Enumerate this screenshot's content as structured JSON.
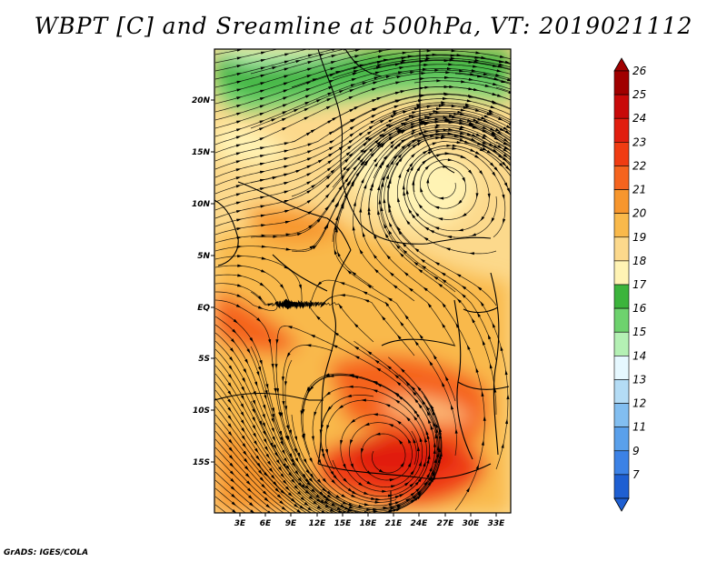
{
  "title": "WBPT [C] and Sreamline at 500hPa, VT: 2019021112",
  "credit": "GrADS: IGES/COLA",
  "map": {
    "lat_labels": [
      "20N",
      "15N",
      "10N",
      "5N",
      "EQ",
      "5S",
      "10S",
      "15S"
    ],
    "lon_labels": [
      "3E",
      "6E",
      "9E",
      "12E",
      "15E",
      "18E",
      "21E",
      "24E",
      "27E",
      "30E",
      "33E"
    ]
  },
  "colorbar": {
    "levels": [
      {
        "label": "26",
        "color": "#a00000"
      },
      {
        "label": "25",
        "color": "#c80a0a"
      },
      {
        "label": "24",
        "color": "#e11e0f"
      },
      {
        "label": "23",
        "color": "#f03c12"
      },
      {
        "label": "22",
        "color": "#f5641e"
      },
      {
        "label": "21",
        "color": "#f7962d"
      },
      {
        "label": "20",
        "color": "#f9b94b"
      },
      {
        "label": "19",
        "color": "#fcd98c"
      },
      {
        "label": "18",
        "color": "#fff3b4"
      },
      {
        "label": "17",
        "color": "#3cb43c"
      },
      {
        "label": "16",
        "color": "#6ed26e"
      },
      {
        "label": "15",
        "color": "#b4f0b4"
      },
      {
        "label": "14",
        "color": "#e6f8ff"
      },
      {
        "label": "13",
        "color": "#b4dcf5"
      },
      {
        "label": "12",
        "color": "#82bef0"
      },
      {
        "label": "11",
        "color": "#5aa0eb"
      },
      {
        "label": "9",
        "color": "#3c82e6"
      },
      {
        "label": "7",
        "color": "#1e5fd2"
      }
    ],
    "bottom_color": "#1e5fd2",
    "top_color": "#a00000"
  }
}
